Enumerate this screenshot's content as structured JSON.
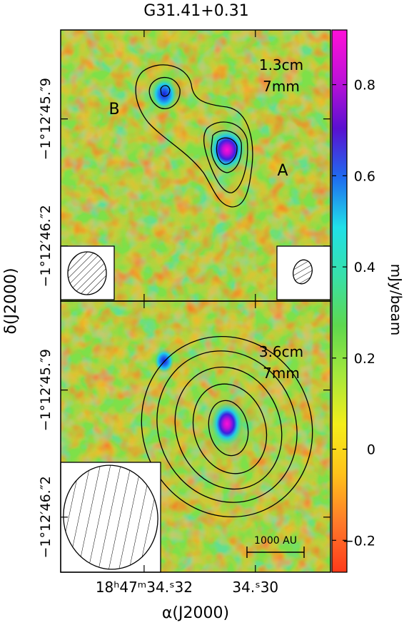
{
  "figure": {
    "title": "G31.41+0.31",
    "xlabel": "α(J2000)",
    "ylabel": "δ(J2000)",
    "colorbar_label": "mJy/beam",
    "colorbar_ticks": [
      "0.8",
      "0.6",
      "0.4",
      "0.2",
      "0",
      "−0.2"
    ],
    "colorbar_values": [
      0.8,
      0.6,
      0.4,
      0.2,
      0.0,
      -0.2
    ],
    "colorbar_range": [
      -0.27,
      0.92
    ],
    "colormap": [
      "#ff3a1a",
      "#ff7a2a",
      "#ffc21a",
      "#f4ee1a",
      "#a6e83c",
      "#5ed84e",
      "#38e0a8",
      "#20e0e8",
      "#1f6cf0",
      "#5a10d0",
      "#c010d8",
      "#ff10d8"
    ],
    "x_ticks": [
      {
        "label": "18ʰ47ᵐ34.ˢ32",
        "value": 34.32
      },
      {
        "label": "34.ˢ30",
        "value": 34.3
      }
    ],
    "x_range": [
      34.335,
      34.2865
    ],
    "y_ticks_top": [
      {
        "label": "−1°12′45.″9",
        "value": 45.9
      },
      {
        "label": "−1°12′46.″2",
        "value": 46.2
      }
    ],
    "y_ticks_bottom": [
      {
        "label": "−1°12′45.″9",
        "value": 45.9
      },
      {
        "label": "−1°12′46.″2",
        "value": 46.2
      }
    ]
  },
  "panels": {
    "top": {
      "label_line1": "1.3cm",
      "label_line2": "7mm",
      "source_a": "A",
      "source_b": "B"
    },
    "bottom": {
      "label_line1": "3.6cm",
      "label_line2": "7mm",
      "scalebar_label": "1000 AU"
    }
  }
}
